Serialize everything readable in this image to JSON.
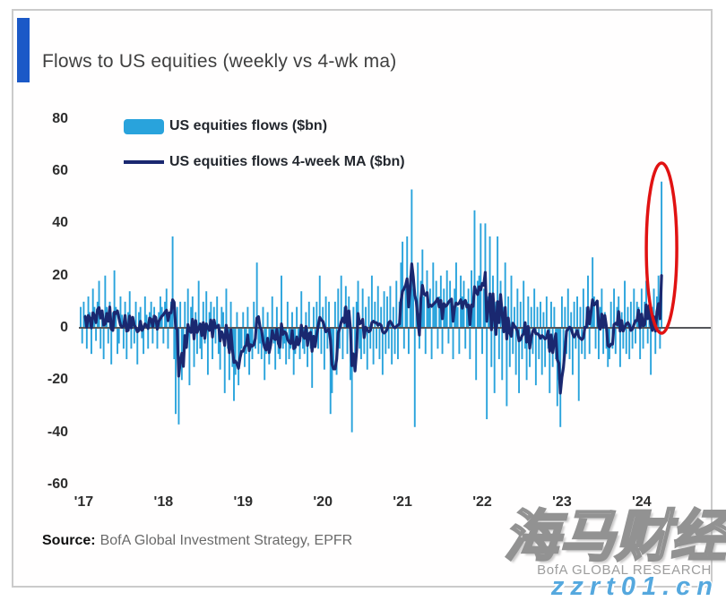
{
  "source": {
    "label": "Source:",
    "text": "BofA Global Investment Strategy, EPFR"
  },
  "watermarks": {
    "bofa_research": "BofA GLOBAL RESEARCH",
    "site_name": "海马财经",
    "site_url": "zzrt01.cn"
  },
  "header": {
    "accent_color": "#1b59c7"
  },
  "chart_data": {
    "type": "bar",
    "title": "Flows to US equities (weekly vs 4-wk ma)",
    "frequency": "weekly",
    "x_tick_labels": [
      "'17",
      "'18",
      "'19",
      "'20",
      "'21",
      "'22",
      "'23",
      "'24"
    ],
    "weeks_per_tick": 52,
    "y_ticks": [
      80,
      60,
      40,
      20,
      0,
      -20,
      -40,
      -60
    ],
    "ylim": [
      -65,
      85
    ],
    "grid": false,
    "legend_position": "top-left",
    "axis_color": "#55565a",
    "series": [
      {
        "name": "US equities flows ($bn)",
        "type": "bar",
        "color": "#29a3dc",
        "values": [
          8,
          -6,
          10,
          5,
          -8,
          12,
          6,
          -10,
          15,
          8,
          -5,
          10,
          18,
          -8,
          6,
          -12,
          20,
          8,
          -6,
          10,
          -14,
          6,
          22,
          8,
          -10,
          -6,
          12,
          5,
          -8,
          10,
          -12,
          6,
          14,
          -8,
          4,
          -6,
          10,
          -14,
          6,
          8,
          -4,
          -10,
          12,
          5,
          -8,
          6,
          10,
          -6,
          8,
          4,
          -8,
          6,
          12,
          8,
          -6,
          10,
          15,
          -8,
          6,
          10,
          35,
          -12,
          -33,
          8,
          -37,
          10,
          -20,
          -12,
          10,
          -8,
          15,
          -22,
          8,
          12,
          -15,
          6,
          -10,
          18,
          -8,
          -12,
          10,
          -6,
          14,
          -18,
          6,
          10,
          -12,
          8,
          -6,
          12,
          -10,
          -16,
          8,
          6,
          -25,
          15,
          -8,
          -20,
          10,
          -15,
          -28,
          -18,
          6,
          -22,
          -12,
          -8,
          6,
          -15,
          -10,
          8,
          -18,
          -6,
          -12,
          10,
          -8,
          25,
          -10,
          -6,
          -12,
          8,
          -20,
          -10,
          6,
          -14,
          -8,
          12,
          -6,
          -16,
          8,
          -10,
          -12,
          20,
          -8,
          -6,
          -14,
          10,
          -12,
          -8,
          6,
          -18,
          -10,
          8,
          -6,
          -12,
          14,
          -8,
          -10,
          6,
          -15,
          10,
          -8,
          -23,
          8,
          -6,
          10,
          -8,
          20,
          -10,
          8,
          -16,
          12,
          -8,
          10,
          -33,
          -25,
          -15,
          10,
          -18,
          15,
          -8,
          20,
          -12,
          8,
          16,
          -10,
          12,
          -20,
          -40,
          8,
          -14,
          10,
          18,
          -8,
          -12,
          15,
          -10,
          8,
          -16,
          12,
          -8,
          20,
          -14,
          10,
          -8,
          16,
          -12,
          8,
          -18,
          14,
          -10,
          12,
          -8,
          16,
          -14,
          8,
          -10,
          18,
          -12,
          10,
          25,
          33,
          -8,
          15,
          35,
          -10,
          20,
          53,
          15,
          -38,
          10,
          25,
          -8,
          18,
          30,
          12,
          -10,
          22,
          8,
          15,
          -12,
          25,
          10,
          18,
          -8,
          12,
          20,
          -10,
          15,
          8,
          22,
          -6,
          18,
          10,
          -12,
          15,
          25,
          8,
          -10,
          20,
          12,
          18,
          -8,
          10,
          15,
          -12,
          22,
          8,
          45,
          -20,
          18,
          20,
          40,
          -10,
          15,
          40,
          -35,
          12,
          35,
          -15,
          20,
          -25,
          10,
          35,
          -12,
          18,
          -20,
          8,
          25,
          -30,
          12,
          -15,
          20,
          -10,
          8,
          -18,
          15,
          -25,
          10,
          -12,
          18,
          -8,
          -20,
          12,
          -15,
          8,
          -10,
          15,
          -22,
          8,
          -12,
          10,
          -18,
          6,
          -15,
          12,
          -8,
          -25,
          10,
          -15,
          8,
          -12,
          -30,
          -20,
          -38,
          12,
          -15,
          8,
          -10,
          15,
          -12,
          6,
          -18,
          10,
          -8,
          12,
          -28,
          8,
          -10,
          15,
          -12,
          8,
          20,
          -10,
          6,
          27,
          12,
          -8,
          10,
          -12,
          8,
          15,
          -10,
          6,
          -8,
          -15,
          -12,
          10,
          -8,
          15,
          -10,
          8,
          12,
          -15,
          6,
          -8,
          18,
          -10,
          8,
          -12,
          10,
          -8,
          15,
          -6,
          10,
          8,
          -12,
          15,
          -8,
          10,
          18,
          -6,
          12,
          -18,
          8,
          15,
          -10,
          12,
          20,
          -8,
          56
        ]
      },
      {
        "name": "US equities flows 4-week MA ($bn)",
        "type": "line",
        "color": "#1a2870",
        "derived": "4-week moving average of the weekly bar series"
      }
    ],
    "annotations": [
      {
        "type": "ellipse",
        "color": "#e11212",
        "note": "red oval highlighting the latest weekly inflow spike",
        "x": "latest week (2024)",
        "y": 56
      }
    ]
  }
}
